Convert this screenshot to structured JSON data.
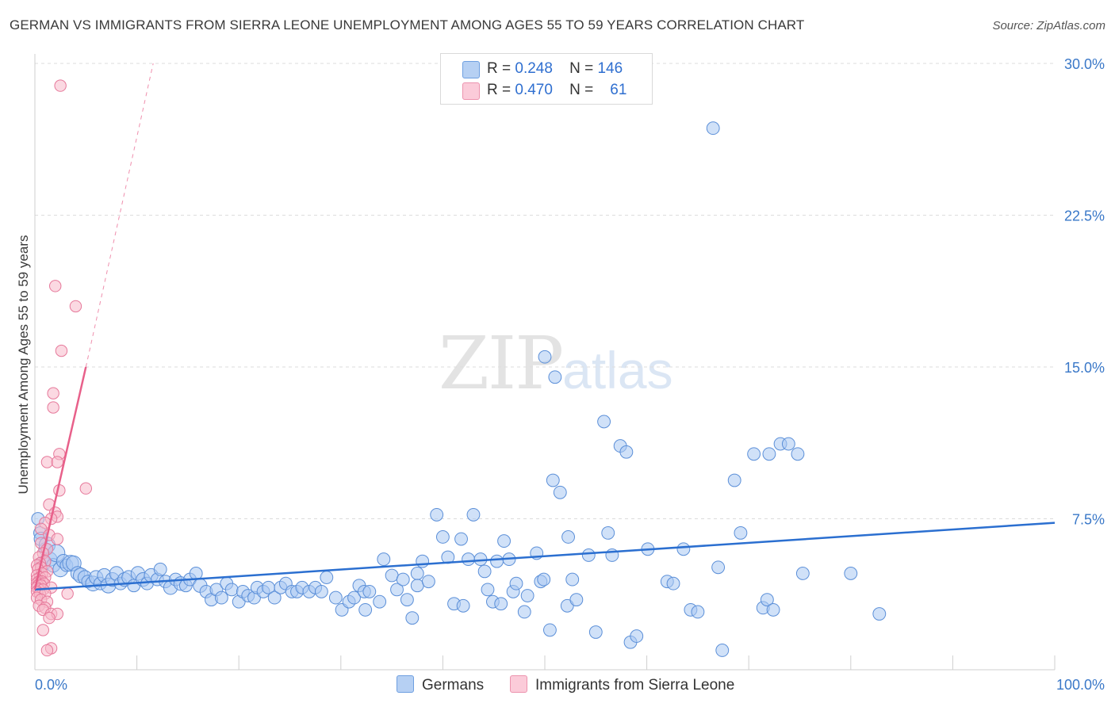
{
  "title": "GERMAN VS IMMIGRANTS FROM SIERRA LEONE UNEMPLOYMENT AMONG AGES 55 TO 59 YEARS CORRELATION CHART",
  "source": "Source: ZipAtlas.com",
  "watermark": {
    "zip": "ZIP",
    "atlas": "atlas"
  },
  "legend_top": [
    {
      "r_label": "R =",
      "r": "0.248",
      "n_label": "N =",
      "n": "146"
    },
    {
      "r_label": "R =",
      "r": "0.470",
      "n_label": "N =",
      "n": "61"
    }
  ],
  "colors": {
    "blue_fill": "#a9c8f2",
    "blue_stroke": "#5b8fd8",
    "blue_line": "#2b6fd0",
    "pink_fill": "#f8b9cb",
    "pink_stroke": "#e6789a",
    "pink_line": "#e8608a",
    "axis_text": "#3a78c8"
  },
  "chart_data": {
    "type": "scatter",
    "title": "GERMAN VS IMMIGRANTS FROM SIERRA LEONE UNEMPLOYMENT AMONG AGES 55 TO 59 YEARS CORRELATION CHART",
    "xlabel": "",
    "ylabel": "Unemployment Among Ages 55 to 59 years",
    "xlim": [
      0,
      100
    ],
    "ylim": [
      0,
      30
    ],
    "x_tick_labels": [
      "0.0%",
      "100.0%"
    ],
    "y_tick_labels": [
      "7.5%",
      "15.0%",
      "22.5%",
      "30.0%"
    ],
    "y_ticks": [
      7.5,
      15.0,
      22.5,
      30.0
    ],
    "grid": true,
    "legend": "bottom-center",
    "series": [
      {
        "name": "Germans",
        "r": 0.248,
        "n": 146,
        "trend": [
          [
            0,
            4.0
          ],
          [
            100,
            7.3
          ]
        ],
        "points": [
          [
            0.3,
            7.5,
            11
          ],
          [
            0.5,
            6.8,
            11
          ],
          [
            0.6,
            6.5,
            12
          ],
          [
            0.8,
            5.3,
            13
          ],
          [
            1.0,
            6.0,
            11
          ],
          [
            1.2,
            6.2,
            14
          ],
          [
            1.5,
            5.5,
            12
          ],
          [
            1.8,
            5.2,
            12
          ],
          [
            2.1,
            5.8,
            15
          ],
          [
            2.5,
            5.0,
            13
          ],
          [
            2.8,
            5.4,
            12
          ],
          [
            3.1,
            5.2,
            11
          ],
          [
            3.5,
            5.3,
            14
          ],
          [
            3.8,
            5.3,
            13
          ],
          [
            4.2,
            4.8,
            12
          ],
          [
            4.5,
            4.7,
            13
          ],
          [
            4.9,
            4.6,
            12
          ],
          [
            5.2,
            4.4,
            11
          ],
          [
            5.7,
            4.3,
            13
          ],
          [
            6.0,
            4.6,
            12
          ],
          [
            6.4,
            4.3,
            11
          ],
          [
            6.8,
            4.7,
            12
          ],
          [
            7.2,
            4.2,
            13
          ],
          [
            7.6,
            4.5,
            12
          ],
          [
            8.0,
            4.8,
            12
          ],
          [
            8.4,
            4.3,
            11
          ],
          [
            8.8,
            4.5,
            12
          ],
          [
            9.2,
            4.6,
            12
          ],
          [
            9.7,
            4.2,
            11
          ],
          [
            10.1,
            4.8,
            12
          ],
          [
            10.6,
            4.5,
            12
          ],
          [
            11.0,
            4.3,
            11
          ],
          [
            11.4,
            4.7,
            12
          ],
          [
            12.0,
            4.5,
            11
          ],
          [
            12.3,
            5.0,
            11
          ],
          [
            12.8,
            4.4,
            11
          ],
          [
            13.3,
            4.1,
            12
          ],
          [
            13.8,
            4.5,
            11
          ],
          [
            14.3,
            4.3,
            12
          ],
          [
            14.8,
            4.2,
            11
          ],
          [
            15.2,
            4.5,
            11
          ],
          [
            15.8,
            4.8,
            11
          ],
          [
            16.2,
            4.2,
            12
          ],
          [
            16.8,
            3.9,
            11
          ],
          [
            17.3,
            3.5,
            11
          ],
          [
            17.8,
            4.0,
            11
          ],
          [
            18.3,
            3.6,
            11
          ],
          [
            18.8,
            4.3,
            11
          ],
          [
            19.3,
            4.0,
            11
          ],
          [
            20.0,
            3.4,
            11
          ],
          [
            20.4,
            3.9,
            11
          ],
          [
            20.9,
            3.7,
            11
          ],
          [
            21.5,
            3.6,
            11
          ],
          [
            21.8,
            4.1,
            11
          ],
          [
            22.4,
            3.9,
            11
          ],
          [
            22.9,
            4.1,
            11
          ],
          [
            23.5,
            3.6,
            11
          ],
          [
            24.1,
            4.1,
            11
          ],
          [
            24.6,
            4.3,
            11
          ],
          [
            25.2,
            3.9,
            11
          ],
          [
            25.7,
            3.9,
            11
          ],
          [
            26.2,
            4.1,
            11
          ],
          [
            26.9,
            3.9,
            11
          ],
          [
            27.5,
            4.1,
            11
          ],
          [
            28.1,
            3.9,
            11
          ],
          [
            28.6,
            4.6,
            11
          ],
          [
            29.5,
            3.6,
            11
          ],
          [
            30.1,
            3.0,
            11
          ],
          [
            30.8,
            3.4,
            11
          ],
          [
            31.3,
            3.6,
            11
          ],
          [
            31.8,
            4.2,
            11
          ],
          [
            32.3,
            3.9,
            11
          ],
          [
            32.8,
            3.9,
            11
          ],
          [
            32.4,
            3.0,
            11
          ],
          [
            33.8,
            3.4,
            11
          ],
          [
            34.2,
            5.5,
            11
          ],
          [
            35.0,
            4.7,
            11
          ],
          [
            35.5,
            4.0,
            11
          ],
          [
            36.1,
            4.5,
            11
          ],
          [
            36.5,
            3.5,
            11
          ],
          [
            37.0,
            2.6,
            11
          ],
          [
            37.5,
            4.8,
            11
          ],
          [
            37.5,
            4.2,
            11
          ],
          [
            38.0,
            5.4,
            11
          ],
          [
            38.6,
            4.4,
            11
          ],
          [
            39.4,
            7.7,
            11
          ],
          [
            40.0,
            6.6,
            11
          ],
          [
            40.5,
            5.6,
            11
          ],
          [
            41.1,
            3.3,
            11
          ],
          [
            41.8,
            6.5,
            11
          ],
          [
            42.0,
            3.2,
            11
          ],
          [
            42.5,
            5.5,
            11
          ],
          [
            43.0,
            7.7,
            11
          ],
          [
            43.7,
            5.5,
            11
          ],
          [
            44.1,
            4.9,
            11
          ],
          [
            44.4,
            4.0,
            11
          ],
          [
            44.9,
            3.4,
            11
          ],
          [
            45.3,
            5.4,
            11
          ],
          [
            45.7,
            3.3,
            11
          ],
          [
            46.0,
            6.4,
            11
          ],
          [
            46.5,
            5.5,
            11
          ],
          [
            46.9,
            3.9,
            11
          ],
          [
            47.2,
            4.3,
            11
          ],
          [
            48.0,
            2.9,
            11
          ],
          [
            48.3,
            3.7,
            11
          ],
          [
            49.2,
            5.8,
            11
          ],
          [
            49.6,
            4.4,
            11
          ],
          [
            49.9,
            4.5,
            11
          ],
          [
            50.0,
            15.5,
            11
          ],
          [
            51.0,
            14.5,
            11
          ],
          [
            50.5,
            2.0,
            11
          ],
          [
            50.8,
            9.4,
            11
          ],
          [
            51.5,
            8.8,
            11
          ],
          [
            52.2,
            3.2,
            11
          ],
          [
            52.3,
            6.6,
            11
          ],
          [
            52.7,
            4.5,
            11
          ],
          [
            53.1,
            3.5,
            11
          ],
          [
            54.3,
            5.7,
            11
          ],
          [
            55.0,
            1.9,
            11
          ],
          [
            55.8,
            12.3,
            11
          ],
          [
            56.2,
            6.8,
            11
          ],
          [
            56.6,
            5.7,
            11
          ],
          [
            57.4,
            11.1,
            11
          ],
          [
            58.0,
            10.8,
            11
          ],
          [
            58.4,
            1.4,
            11
          ],
          [
            59.0,
            1.7,
            11
          ],
          [
            60.1,
            6.0,
            11
          ],
          [
            62.0,
            4.4,
            11
          ],
          [
            62.6,
            4.3,
            11
          ],
          [
            63.6,
            6.0,
            11
          ],
          [
            64.3,
            3.0,
            11
          ],
          [
            65.0,
            2.9,
            11
          ],
          [
            66.5,
            26.8,
            11
          ],
          [
            67.0,
            5.1,
            11
          ],
          [
            67.4,
            1.0,
            11
          ],
          [
            68.6,
            9.4,
            11
          ],
          [
            69.2,
            6.8,
            11
          ],
          [
            70.5,
            10.7,
            11
          ],
          [
            72.0,
            10.7,
            11
          ],
          [
            71.4,
            3.1,
            11
          ],
          [
            71.8,
            3.5,
            11
          ],
          [
            72.4,
            3.0,
            11
          ],
          [
            73.1,
            11.2,
            11
          ],
          [
            73.9,
            11.2,
            11
          ],
          [
            74.8,
            10.7,
            11
          ],
          [
            75.3,
            4.8,
            11
          ],
          [
            80.0,
            4.8,
            11
          ],
          [
            82.8,
            2.8,
            11
          ]
        ]
      },
      {
        "name": "Immigrants from Sierra Leone",
        "r": 0.47,
        "n": 61,
        "trend": [
          [
            0,
            4.0
          ],
          [
            5,
            15.0
          ]
        ],
        "trend_extended": [
          [
            5,
            15.0
          ],
          [
            11.6,
            30.0
          ]
        ],
        "points": [
          [
            2.5,
            28.9,
            10
          ],
          [
            2.0,
            19.0,
            10
          ],
          [
            4.0,
            18.0,
            10
          ],
          [
            2.6,
            15.8,
            10
          ],
          [
            1.8,
            13.7,
            10
          ],
          [
            1.8,
            13.0,
            10
          ],
          [
            1.2,
            10.3,
            10
          ],
          [
            2.4,
            10.7,
            10
          ],
          [
            2.2,
            10.3,
            10
          ],
          [
            5.0,
            9.0,
            10
          ],
          [
            2.4,
            8.9,
            10
          ],
          [
            1.4,
            8.2,
            10
          ],
          [
            2.0,
            7.8,
            10
          ],
          [
            2.2,
            7.6,
            10
          ],
          [
            1.6,
            7.5,
            10
          ],
          [
            1.0,
            7.3,
            10
          ],
          [
            0.6,
            7.0,
            10
          ],
          [
            1.4,
            6.7,
            10
          ],
          [
            2.2,
            6.5,
            10
          ],
          [
            0.6,
            6.3,
            10
          ],
          [
            1.2,
            6.0,
            10
          ],
          [
            0.8,
            5.8,
            10
          ],
          [
            0.4,
            5.6,
            10
          ],
          [
            1.0,
            5.4,
            10
          ],
          [
            0.5,
            5.3,
            10
          ],
          [
            0.2,
            5.2,
            10
          ],
          [
            0.6,
            5.1,
            10
          ],
          [
            0.3,
            5.0,
            10
          ],
          [
            1.2,
            4.9,
            10
          ],
          [
            0.7,
            4.8,
            10
          ],
          [
            0.2,
            4.7,
            10
          ],
          [
            0.5,
            4.6,
            10
          ],
          [
            1.0,
            4.6,
            10
          ],
          [
            0.2,
            4.5,
            10
          ],
          [
            0.4,
            4.4,
            10
          ],
          [
            0.7,
            4.4,
            10
          ],
          [
            0.2,
            4.3,
            10
          ],
          [
            0.5,
            4.3,
            10
          ],
          [
            0.9,
            4.3,
            10
          ],
          [
            0.3,
            4.2,
            10
          ],
          [
            0.6,
            4.2,
            10
          ],
          [
            1.6,
            4.1,
            10
          ],
          [
            0.2,
            4.1,
            10
          ],
          [
            0.4,
            4.0,
            10
          ],
          [
            0.8,
            4.0,
            10
          ],
          [
            0.2,
            3.9,
            10
          ],
          [
            0.5,
            3.8,
            10
          ],
          [
            1.0,
            3.8,
            10
          ],
          [
            3.2,
            3.8,
            10
          ],
          [
            0.2,
            3.6,
            10
          ],
          [
            0.6,
            3.5,
            10
          ],
          [
            1.2,
            3.4,
            10
          ],
          [
            0.4,
            3.2,
            10
          ],
          [
            1.0,
            3.1,
            10
          ],
          [
            0.8,
            3.0,
            10
          ],
          [
            1.6,
            2.8,
            10
          ],
          [
            2.2,
            2.8,
            10
          ],
          [
            1.4,
            2.6,
            10
          ],
          [
            0.8,
            2.0,
            10
          ],
          [
            1.6,
            1.1,
            10
          ],
          [
            1.2,
            1.0,
            10
          ]
        ]
      }
    ]
  }
}
